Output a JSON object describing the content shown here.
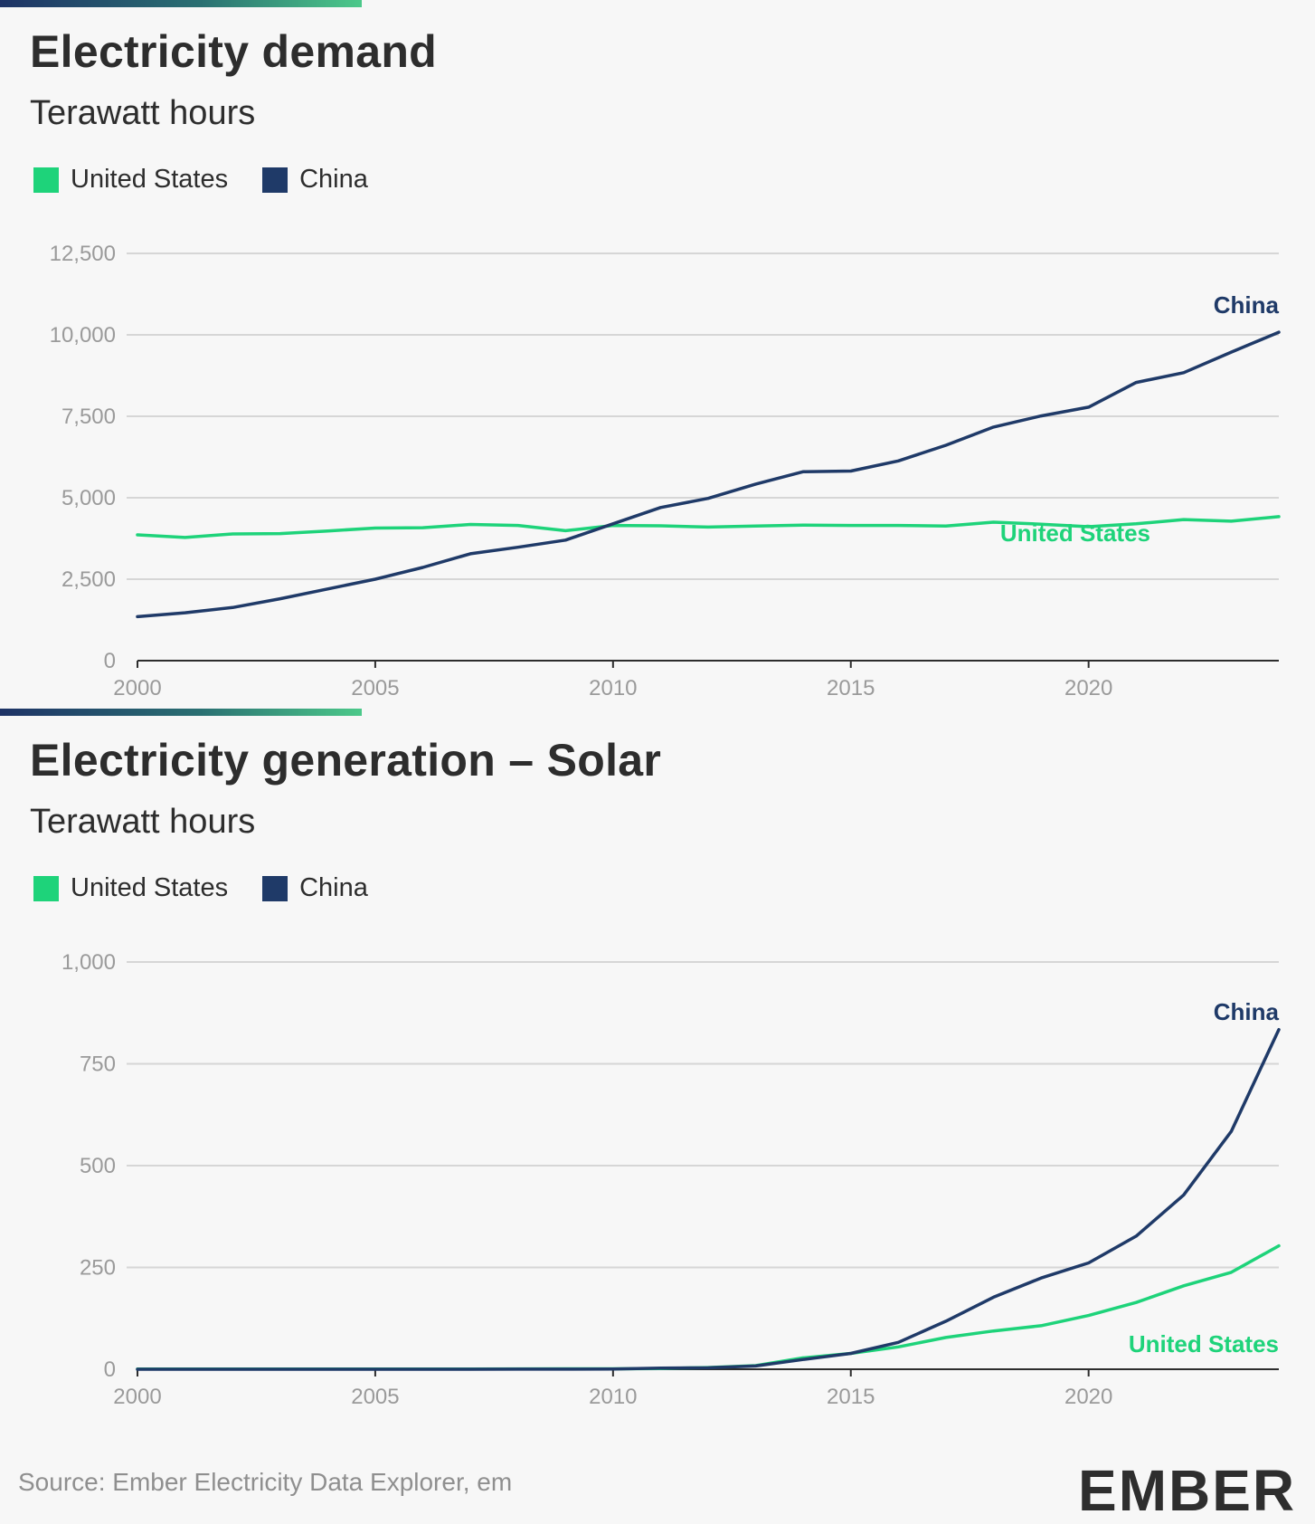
{
  "colors": {
    "us": "#1ed37a",
    "china": "#1f3a68",
    "grid": "#d6d6d6",
    "axis": "#2d2d2d"
  },
  "chart_data": [
    {
      "type": "line",
      "title": "Electricity demand",
      "subtitle": "Terawatt hours",
      "ylabel": "Terawatt hours",
      "xlabel": "",
      "legend": [
        {
          "label": "United States",
          "color": "#1ed37a"
        },
        {
          "label": "China",
          "color": "#1f3a68"
        }
      ],
      "legend_position": "top-left",
      "ylim": [
        0,
        12500
      ],
      "yticks": [
        0,
        2500,
        5000,
        7500,
        10000,
        12500
      ],
      "ytick_labels": [
        "0",
        "2,500",
        "5,000",
        "7,500",
        "10,000",
        "12,500"
      ],
      "xlim": [
        2000,
        2024
      ],
      "xticks": [
        2000,
        2005,
        2010,
        2015,
        2020
      ],
      "xtick_labels": [
        "2000",
        "2005",
        "2010",
        "2015",
        "2020"
      ],
      "grid": true,
      "x": [
        2000,
        2001,
        2002,
        2003,
        2004,
        2005,
        2006,
        2007,
        2008,
        2009,
        2010,
        2011,
        2012,
        2013,
        2014,
        2015,
        2016,
        2017,
        2018,
        2019,
        2020,
        2021,
        2022,
        2023,
        2024
      ],
      "series": [
        {
          "name": "United States",
          "key": "us",
          "end_label": "United States",
          "label_anchor_x": 2021.3,
          "label_anchor_y": 3660,
          "values": [
            3860,
            3780,
            3890,
            3900,
            3980,
            4070,
            4080,
            4180,
            4150,
            3990,
            4150,
            4140,
            4100,
            4130,
            4160,
            4150,
            4150,
            4130,
            4250,
            4190,
            4110,
            4200,
            4330,
            4280,
            4420
          ]
        },
        {
          "name": "China",
          "key": "china",
          "end_label": "China",
          "label_anchor_x": 2024,
          "label_anchor_y": 10660,
          "values": [
            1350,
            1470,
            1630,
            1900,
            2200,
            2500,
            2860,
            3280,
            3480,
            3700,
            4200,
            4700,
            4980,
            5420,
            5800,
            5820,
            6130,
            6610,
            7170,
            7510,
            7780,
            8540,
            8840,
            9470,
            10080
          ]
        }
      ]
    },
    {
      "type": "line",
      "title": "Electricity generation – Solar",
      "subtitle": "Terawatt hours",
      "ylabel": "Terawatt hours",
      "xlabel": "",
      "legend": [
        {
          "label": "United States",
          "color": "#1ed37a"
        },
        {
          "label": "China",
          "color": "#1f3a68"
        }
      ],
      "legend_position": "top-left",
      "ylim": [
        0,
        1000
      ],
      "yticks": [
        0,
        250,
        500,
        750,
        1000
      ],
      "ytick_labels": [
        "0",
        "250",
        "500",
        "750",
        "1,000"
      ],
      "xlim": [
        2000,
        2024
      ],
      "xticks": [
        2000,
        2005,
        2010,
        2015,
        2020
      ],
      "xtick_labels": [
        "2000",
        "2005",
        "2010",
        "2015",
        "2020"
      ],
      "grid": true,
      "x": [
        2000,
        2001,
        2002,
        2003,
        2004,
        2005,
        2006,
        2007,
        2008,
        2009,
        2010,
        2011,
        2012,
        2013,
        2014,
        2015,
        2016,
        2017,
        2018,
        2019,
        2020,
        2021,
        2022,
        2023,
        2024
      ],
      "series": [
        {
          "name": "United States",
          "key": "us",
          "end_label": "United States",
          "label_anchor_x": 2024,
          "label_anchor_y": 42,
          "values": [
            0.5,
            0.5,
            0.6,
            0.5,
            0.6,
            0.6,
            0.5,
            0.6,
            0.9,
            1,
            1.2,
            1.8,
            4.3,
            9,
            28,
            39,
            55,
            78,
            94,
            107,
            132,
            164,
            205,
            238,
            303
          ]
        },
        {
          "name": "China",
          "key": "china",
          "end_label": "China",
          "label_anchor_x": 2024,
          "label_anchor_y": 858,
          "values": [
            0,
            0,
            0,
            0,
            0,
            0,
            0,
            0,
            0.2,
            0.3,
            0.7,
            2.6,
            3.6,
            8,
            24,
            39,
            66,
            118,
            177,
            224,
            261,
            327,
            428,
            584,
            834
          ]
        }
      ]
    }
  ],
  "footer": {
    "source": "Source: Ember Electricity Data Explorer, em",
    "logo": "EMBER"
  }
}
